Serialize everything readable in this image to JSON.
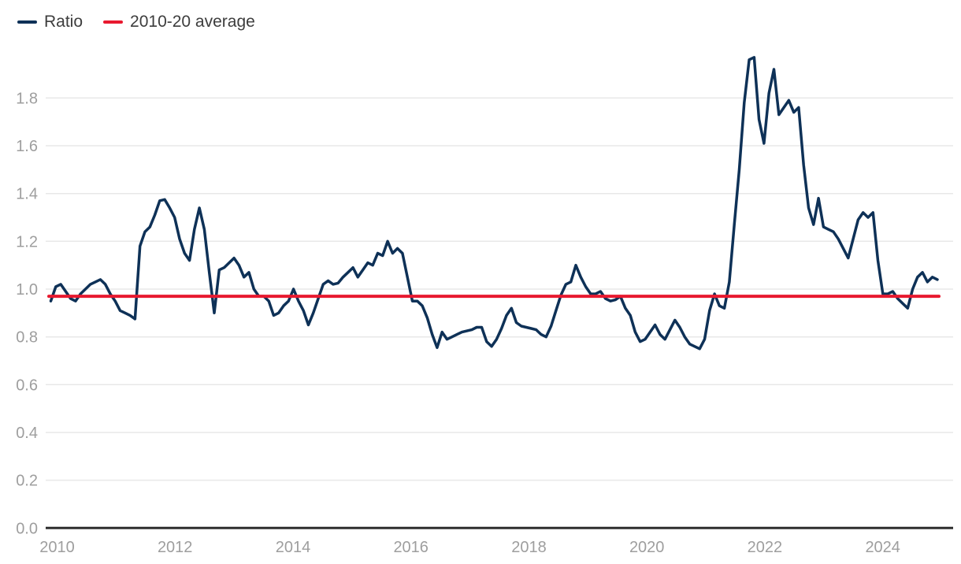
{
  "legend": {
    "series_label": "Ratio",
    "average_label": "2010-20 average"
  },
  "colors": {
    "ratio_line": "#0e3157",
    "average_line": "#e8192f",
    "gridline": "#e8e8e8",
    "axis": "#2e2e2e",
    "tick_label": "#9e9e9e",
    "legend_text": "#3d3d3d",
    "background": "#ffffff"
  },
  "chart_data": {
    "type": "line",
    "title": "",
    "xlabel": "",
    "ylabel": "",
    "grid": "horizontal",
    "legend_position": "top-left",
    "ylim": [
      0.0,
      2.0
    ],
    "y_tick_labels": [
      "0.0",
      "0.2",
      "0.4",
      "0.6",
      "0.8",
      "1.0",
      "1.2",
      "1.4",
      "1.6",
      "1.8"
    ],
    "x_tick_labels": [
      "2010",
      "2012",
      "2014",
      "2016",
      "2018",
      "2020",
      "2022",
      "2024"
    ],
    "x_unit": "month",
    "x_start": "2010-01",
    "x_end": "2024-12",
    "series": [
      {
        "name": "Ratio",
        "kind": "monthly-line",
        "values": [
          0.95,
          1.01,
          1.02,
          0.99,
          0.96,
          0.95,
          0.98,
          1.0,
          1.02,
          1.03,
          1.04,
          1.02,
          0.98,
          0.95,
          0.91,
          0.9,
          0.89,
          0.875,
          1.18,
          1.24,
          1.26,
          1.31,
          1.37,
          1.375,
          1.34,
          1.3,
          1.21,
          1.15,
          1.12,
          1.25,
          1.34,
          1.25,
          1.07,
          0.9,
          1.08,
          1.09,
          1.11,
          1.13,
          1.1,
          1.05,
          1.07,
          1.0,
          0.97,
          0.97,
          0.95,
          0.89,
          0.9,
          0.93,
          0.95,
          1.0,
          0.95,
          0.91,
          0.85,
          0.9,
          0.96,
          1.02,
          1.035,
          1.02,
          1.025,
          1.05,
          1.07,
          1.09,
          1.05,
          1.08,
          1.11,
          1.1,
          1.15,
          1.14,
          1.2,
          1.15,
          1.17,
          1.15,
          1.05,
          0.95,
          0.95,
          0.93,
          0.88,
          0.81,
          0.755,
          0.82,
          0.79,
          0.8,
          0.81,
          0.82,
          0.825,
          0.83,
          0.84,
          0.84,
          0.78,
          0.76,
          0.79,
          0.835,
          0.89,
          0.92,
          0.86,
          0.845,
          0.84,
          0.835,
          0.83,
          0.81,
          0.8,
          0.845,
          0.91,
          0.975,
          1.02,
          1.03,
          1.1,
          1.05,
          1.01,
          0.98,
          0.98,
          0.99,
          0.96,
          0.95,
          0.955,
          0.97,
          0.92,
          0.89,
          0.82,
          0.78,
          0.79,
          0.82,
          0.85,
          0.81,
          0.79,
          0.83,
          0.87,
          0.84,
          0.8,
          0.77,
          0.76,
          0.75,
          0.79,
          0.91,
          0.98,
          0.93,
          0.92,
          1.03,
          1.27,
          1.5,
          1.78,
          1.96,
          1.97,
          1.71,
          1.61,
          1.82,
          1.92,
          1.73,
          1.76,
          1.79,
          1.74,
          1.76,
          1.52,
          1.34,
          1.27,
          1.38,
          1.26,
          1.25,
          1.24,
          1.21,
          1.17,
          1.13,
          1.21,
          1.29,
          1.32,
          1.3,
          1.32,
          1.12,
          0.98,
          0.98,
          0.99,
          0.96,
          0.94,
          0.92,
          1.0,
          1.05,
          1.07,
          1.03,
          1.05,
          1.04
        ]
      },
      {
        "name": "2010-20 average",
        "kind": "constant-line",
        "value": 0.97
      }
    ]
  }
}
